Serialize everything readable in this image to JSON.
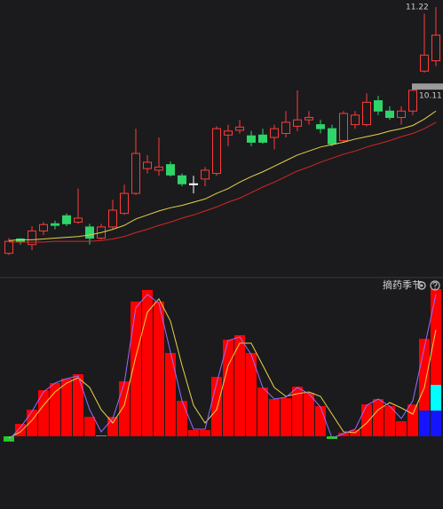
{
  "chart_data": [
    {
      "type": "candlestick",
      "open": [
        8.14,
        8.32,
        8.25,
        8.42,
        8.51,
        8.61,
        8.53,
        8.47,
        8.33,
        8.47,
        8.64,
        8.89,
        9.2,
        9.18,
        9.25,
        9.11,
        9.01,
        9.07,
        9.14,
        9.62,
        9.68,
        9.61,
        9.62,
        9.59,
        9.64,
        9.73,
        9.81,
        9.75,
        9.7,
        9.55,
        9.75,
        9.75,
        10.05,
        9.92,
        9.84,
        9.92,
        10.42,
        10.55
      ],
      "high": [
        8.33,
        8.33,
        8.48,
        8.53,
        8.55,
        8.64,
        8.95,
        8.51,
        8.51,
        8.81,
        9.0,
        9.7,
        9.37,
        9.59,
        9.29,
        9.14,
        9.11,
        9.22,
        9.73,
        9.75,
        9.81,
        9.67,
        9.7,
        9.75,
        9.92,
        10.18,
        9.92,
        9.81,
        9.75,
        9.92,
        9.92,
        10.14,
        10.11,
        9.98,
        9.98,
        10.22,
        11.14,
        11.22
      ],
      "low": [
        8.12,
        8.25,
        8.18,
        8.37,
        8.44,
        8.48,
        8.51,
        8.25,
        8.31,
        8.44,
        8.62,
        8.87,
        9.14,
        9.11,
        9.1,
        8.98,
        8.89,
        8.98,
        9.11,
        9.48,
        9.64,
        9.48,
        9.51,
        9.44,
        9.59,
        9.67,
        9.75,
        9.64,
        9.48,
        9.53,
        9.7,
        9.73,
        9.87,
        9.81,
        9.75,
        9.87,
        10.4,
        10.48
      ],
      "close": [
        8.29,
        8.29,
        8.42,
        8.5,
        8.49,
        8.51,
        8.58,
        8.33,
        8.47,
        8.68,
        8.89,
        9.39,
        9.28,
        9.22,
        9.12,
        9.01,
        9.01,
        9.18,
        9.7,
        9.67,
        9.72,
        9.53,
        9.53,
        9.7,
        9.78,
        9.81,
        9.84,
        9.7,
        9.51,
        9.89,
        9.87,
        10.03,
        9.92,
        9.84,
        9.92,
        10.18,
        10.62,
        10.87
      ],
      "up_color": "#ff3b3b",
      "down_color": "#2fd46a",
      "flat_color": "#ffffff",
      "ylim": [
        7.87,
        11.31
      ],
      "price_labels": [
        11.22,
        10.11
      ],
      "series": [
        {
          "color": "#e6d34a",
          "values": [
            8.3,
            8.31,
            8.31,
            8.32,
            8.33,
            8.34,
            8.35,
            8.37,
            8.4,
            8.44,
            8.49,
            8.57,
            8.62,
            8.67,
            8.71,
            8.74,
            8.78,
            8.82,
            8.89,
            8.95,
            9.03,
            9.1,
            9.16,
            9.23,
            9.3,
            9.37,
            9.42,
            9.47,
            9.5,
            9.53,
            9.57,
            9.6,
            9.63,
            9.67,
            9.7,
            9.74,
            9.82,
            9.92
          ]
        },
        {
          "color": "#d42626",
          "values": [
            8.28,
            8.28,
            8.28,
            8.28,
            8.29,
            8.29,
            8.29,
            8.29,
            8.3,
            8.32,
            8.35,
            8.4,
            8.44,
            8.49,
            8.53,
            8.58,
            8.62,
            8.67,
            8.72,
            8.78,
            8.83,
            8.9,
            8.97,
            9.03,
            9.1,
            9.17,
            9.22,
            9.28,
            9.33,
            9.38,
            9.42,
            9.47,
            9.51,
            9.55,
            9.6,
            9.64,
            9.7,
            9.78
          ]
        }
      ]
    },
    {
      "type": "bar",
      "title": "摘药季节",
      "ylim": [
        -82,
        177
      ],
      "series": [
        {
          "color": "#1414ff",
          "values": [
            null,
            null,
            null,
            null,
            null,
            null,
            null,
            null,
            null,
            null,
            null,
            null,
            null,
            null,
            null,
            null,
            null,
            null,
            null,
            null,
            null,
            null,
            null,
            null,
            null,
            null,
            null,
            null,
            null,
            null,
            null,
            null,
            null,
            null,
            null,
            null,
            29,
            29
          ]
        },
        {
          "color": "#00ffff",
          "values": [
            null,
            null,
            null,
            null,
            null,
            null,
            null,
            null,
            null,
            null,
            null,
            null,
            null,
            null,
            null,
            null,
            null,
            null,
            null,
            null,
            null,
            null,
            null,
            null,
            null,
            null,
            null,
            null,
            null,
            null,
            null,
            null,
            null,
            null,
            null,
            null,
            null,
            29
          ]
        },
        {
          "color": "#ff0000",
          "negative_color": "#22cc22",
          "zero_color": "#888888",
          "values": [
            -6,
            14,
            30,
            52,
            60,
            65,
            70,
            22,
            0,
            22,
            62,
            152,
            165,
            152,
            94,
            40,
            7,
            7,
            67,
            109,
            114,
            94,
            55,
            42,
            43,
            56,
            49,
            34,
            -3,
            4,
            7,
            36,
            42,
            34,
            17,
            36,
            81,
            108
          ]
        }
      ],
      "lines": [
        {
          "color": "#e6d34a",
          "values": [
            -2,
            5,
            18,
            35,
            50,
            60,
            66,
            55,
            30,
            15,
            35,
            90,
            140,
            155,
            130,
            80,
            35,
            15,
            30,
            80,
            105,
            105,
            80,
            55,
            45,
            48,
            50,
            45,
            25,
            5,
            4,
            15,
            30,
            38,
            32,
            25,
            55,
            120
          ]
        },
        {
          "color": "#9a6bff",
          "values": [
            -4,
            10,
            28,
            50,
            60,
            65,
            68,
            30,
            5,
            20,
            60,
            145,
            160,
            150,
            95,
            40,
            8,
            8,
            60,
            108,
            112,
            92,
            55,
            42,
            44,
            55,
            48,
            33,
            -2,
            3,
            8,
            35,
            42,
            34,
            20,
            40,
            100,
            160
          ]
        }
      ]
    }
  ]
}
